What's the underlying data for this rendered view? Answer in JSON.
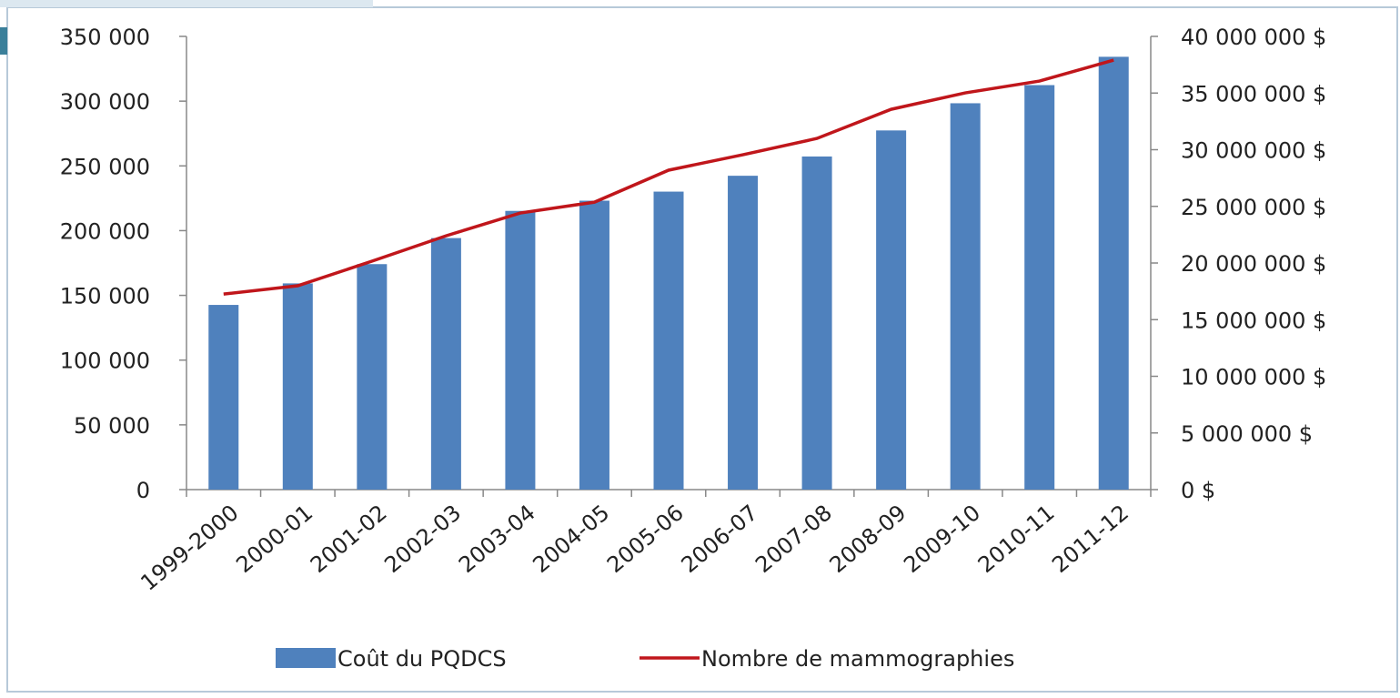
{
  "chart_data": {
    "type": "bar-line",
    "categories": [
      "1999-2000",
      "2000-01",
      "2001-02",
      "2002-03",
      "2003-04",
      "2004-05",
      "2005-06",
      "2006-07",
      "2007-08",
      "2008-09",
      "2009-10",
      "2010-11",
      "2011-12"
    ],
    "series": [
      {
        "name": "Coût du PQDCS",
        "type": "bar",
        "axis": "y2",
        "color": "#4f81bd",
        "values": [
          16300000,
          18200000,
          19900000,
          22200000,
          24600000,
          25500000,
          26300000,
          27700000,
          29400000,
          31700000,
          34100000,
          35700000,
          38200000
        ]
      },
      {
        "name": "Nombre de mammographies",
        "type": "line",
        "axis": "y",
        "color": "#c0161b",
        "values": [
          151000,
          157400,
          176400,
          196000,
          213600,
          222000,
          246700,
          258600,
          271200,
          293700,
          306400,
          315500,
          331700
        ]
      }
    ],
    "ylim": [
      0,
      350000
    ],
    "yticks": [
      0,
      {
        "value": 50000,
        "label": "50 000"
      },
      {
        "value": 100000,
        "label": "100 000"
      },
      {
        "value": 150000,
        "label": "150 000"
      },
      {
        "value": 200000,
        "label": "200 000"
      },
      {
        "value": 250000,
        "label": "250 000"
      },
      {
        "value": 300000,
        "label": "300 000"
      },
      {
        "value": 350000,
        "label": "350 000"
      }
    ],
    "y2lim": [
      0,
      40000000
    ],
    "y2ticks": [
      {
        "value": 0,
        "label": "0 $"
      },
      {
        "value": 5000000,
        "label": "5 000 000 $"
      },
      {
        "value": 10000000,
        "label": "10 000 000 $"
      },
      {
        "value": 15000000,
        "label": "15 000 000 $"
      },
      {
        "value": 20000000,
        "label": "20 000 000 $"
      },
      {
        "value": 25000000,
        "label": "25 000 000 $"
      },
      {
        "value": 30000000,
        "label": "30 000 000 $"
      },
      {
        "value": 35000000,
        "label": "35 000 000 $"
      },
      {
        "value": 40000000,
        "label": "40 000 000 $"
      }
    ],
    "legend": "bottom"
  }
}
